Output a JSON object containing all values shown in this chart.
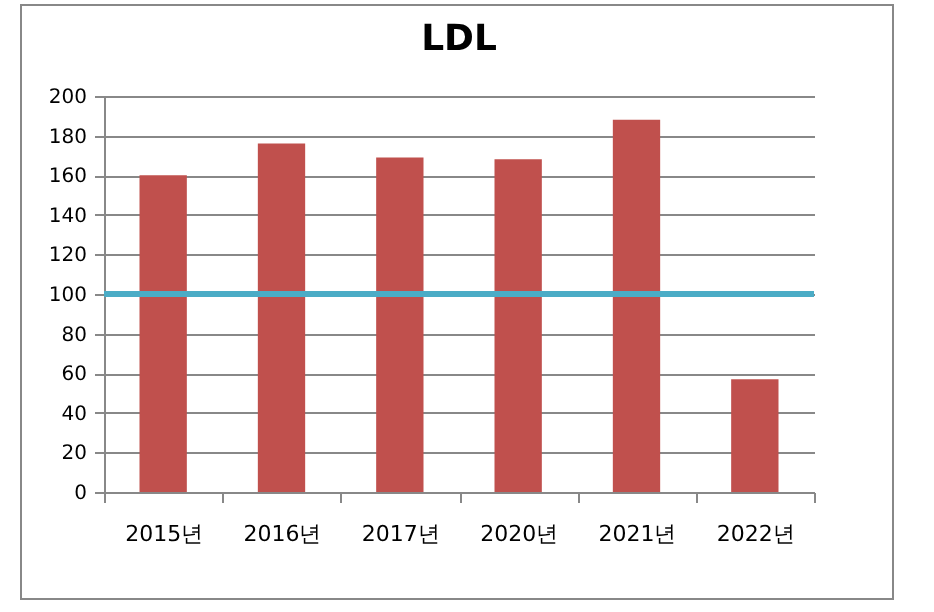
{
  "chart_data": {
    "type": "bar",
    "title": "LDL",
    "categories": [
      "2015년",
      "2016년",
      "2017년",
      "2020년",
      "2021년",
      "2022년"
    ],
    "values": [
      160,
      176,
      169,
      168,
      188,
      57
    ],
    "color": "#c0504d",
    "ylim": [
      0,
      200
    ],
    "yticks": [
      0,
      20,
      40,
      60,
      80,
      100,
      120,
      140,
      160,
      180,
      200
    ],
    "grid": "y",
    "ref_lines": [
      {
        "axis": "y",
        "value": 100,
        "color": "#4bacc6"
      }
    ]
  }
}
